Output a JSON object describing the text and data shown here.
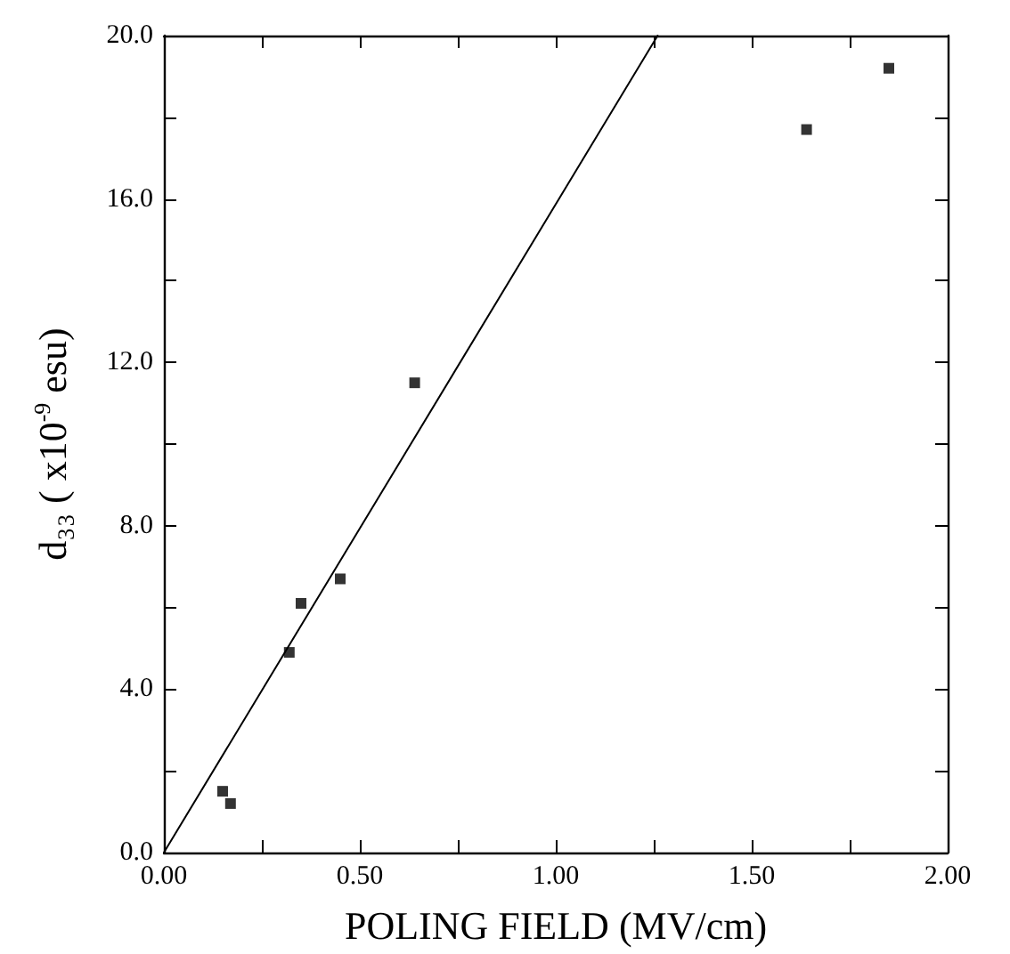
{
  "chart_data": {
    "type": "scatter",
    "xlabel": "POLING FIELD (MV/cm)",
    "ylabel": "d₃₃ ( x10$^{-9}$ esu)",
    "xlim": [
      0,
      2
    ],
    "ylim": [
      0,
      20
    ],
    "xticks": [
      {
        "value": 0,
        "label": "0.00"
      },
      {
        "value": 0.25,
        "label": null
      },
      {
        "value": 0.5,
        "label": "0.50"
      },
      {
        "value": 0.75,
        "label": null
      },
      {
        "value": 1,
        "label": "1.00"
      },
      {
        "value": 1.25,
        "label": null
      },
      {
        "value": 1.5,
        "label": "1.50"
      },
      {
        "value": 1.75,
        "label": null
      },
      {
        "value": 2,
        "label": "2.00"
      }
    ],
    "yticks": [
      {
        "value": 0,
        "label": "0.0"
      },
      {
        "value": 2,
        "label": null
      },
      {
        "value": 4,
        "label": "4.0"
      },
      {
        "value": 6,
        "label": null
      },
      {
        "value": 8,
        "label": "8.0"
      },
      {
        "value": 10,
        "label": null
      },
      {
        "value": 12,
        "label": "12.0"
      },
      {
        "value": 14,
        "label": null
      },
      {
        "value": 16,
        "label": "16.0"
      },
      {
        "value": 18,
        "label": null
      },
      {
        "value": 20,
        "label": "20.0"
      }
    ],
    "grid": false,
    "marker": "square",
    "series": [
      {
        "color": "#000000",
        "x": [
          0.15,
          0.17,
          0.32,
          0.35,
          0.45,
          0.64,
          1.64,
          1.85
        ],
        "values": [
          1.5,
          1.2,
          4.9,
          6.1,
          6.7,
          11.5,
          17.7,
          19.2
        ]
      },
      {
        "type": "line",
        "color": "#000000",
        "marker": "none",
        "x": [
          0,
          1.26
        ],
        "values": [
          0,
          20
        ]
      }
    ]
  }
}
